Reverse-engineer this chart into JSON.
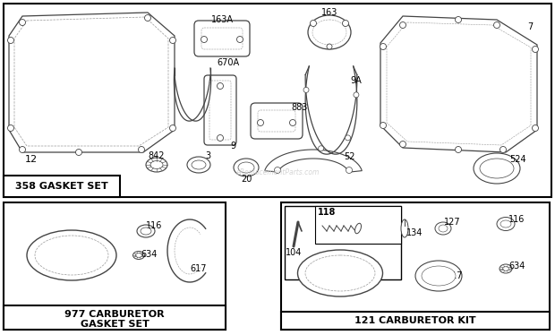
{
  "bg_color": "#ffffff",
  "box1_label": "358 GASKET SET",
  "box2_label": "977 CARBURETOR\nGASKET SET",
  "box3_label": "121 CARBURETOR KIT",
  "watermark": "eReplacementParts.com",
  "dgray": "#444444",
  "lgray": "#999999",
  "vlgray": "#bbbbbb"
}
